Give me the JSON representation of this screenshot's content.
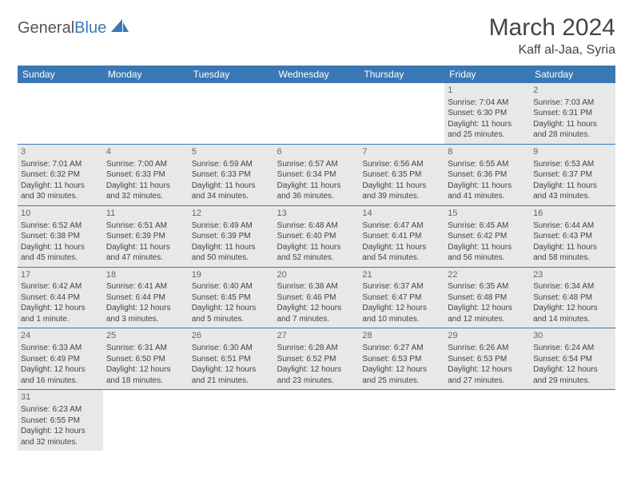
{
  "logo": {
    "text1": "General",
    "text2": "Blue"
  },
  "header": {
    "title": "March 2024",
    "location": "Kaff al-Jaa, Syria"
  },
  "calendar": {
    "weekday_bg": "#3a78b5",
    "weekday_fg": "#ffffff",
    "cell_alt_bg": "#e8e8e8",
    "border_color": "#3a78b5",
    "weekdays": [
      "Sunday",
      "Monday",
      "Tuesday",
      "Wednesday",
      "Thursday",
      "Friday",
      "Saturday"
    ],
    "weeks": [
      [
        null,
        null,
        null,
        null,
        null,
        {
          "n": "1",
          "sr": "Sunrise: 7:04 AM",
          "ss": "Sunset: 6:30 PM",
          "dl": "Daylight: 11 hours and 25 minutes."
        },
        {
          "n": "2",
          "sr": "Sunrise: 7:03 AM",
          "ss": "Sunset: 6:31 PM",
          "dl": "Daylight: 11 hours and 28 minutes."
        }
      ],
      [
        {
          "n": "3",
          "sr": "Sunrise: 7:01 AM",
          "ss": "Sunset: 6:32 PM",
          "dl": "Daylight: 11 hours and 30 minutes."
        },
        {
          "n": "4",
          "sr": "Sunrise: 7:00 AM",
          "ss": "Sunset: 6:33 PM",
          "dl": "Daylight: 11 hours and 32 minutes."
        },
        {
          "n": "5",
          "sr": "Sunrise: 6:59 AM",
          "ss": "Sunset: 6:33 PM",
          "dl": "Daylight: 11 hours and 34 minutes."
        },
        {
          "n": "6",
          "sr": "Sunrise: 6:57 AM",
          "ss": "Sunset: 6:34 PM",
          "dl": "Daylight: 11 hours and 36 minutes."
        },
        {
          "n": "7",
          "sr": "Sunrise: 6:56 AM",
          "ss": "Sunset: 6:35 PM",
          "dl": "Daylight: 11 hours and 39 minutes."
        },
        {
          "n": "8",
          "sr": "Sunrise: 6:55 AM",
          "ss": "Sunset: 6:36 PM",
          "dl": "Daylight: 11 hours and 41 minutes."
        },
        {
          "n": "9",
          "sr": "Sunrise: 6:53 AM",
          "ss": "Sunset: 6:37 PM",
          "dl": "Daylight: 11 hours and 43 minutes."
        }
      ],
      [
        {
          "n": "10",
          "sr": "Sunrise: 6:52 AM",
          "ss": "Sunset: 6:38 PM",
          "dl": "Daylight: 11 hours and 45 minutes."
        },
        {
          "n": "11",
          "sr": "Sunrise: 6:51 AM",
          "ss": "Sunset: 6:39 PM",
          "dl": "Daylight: 11 hours and 47 minutes."
        },
        {
          "n": "12",
          "sr": "Sunrise: 6:49 AM",
          "ss": "Sunset: 6:39 PM",
          "dl": "Daylight: 11 hours and 50 minutes."
        },
        {
          "n": "13",
          "sr": "Sunrise: 6:48 AM",
          "ss": "Sunset: 6:40 PM",
          "dl": "Daylight: 11 hours and 52 minutes."
        },
        {
          "n": "14",
          "sr": "Sunrise: 6:47 AM",
          "ss": "Sunset: 6:41 PM",
          "dl": "Daylight: 11 hours and 54 minutes."
        },
        {
          "n": "15",
          "sr": "Sunrise: 6:45 AM",
          "ss": "Sunset: 6:42 PM",
          "dl": "Daylight: 11 hours and 56 minutes."
        },
        {
          "n": "16",
          "sr": "Sunrise: 6:44 AM",
          "ss": "Sunset: 6:43 PM",
          "dl": "Daylight: 11 hours and 58 minutes."
        }
      ],
      [
        {
          "n": "17",
          "sr": "Sunrise: 6:42 AM",
          "ss": "Sunset: 6:44 PM",
          "dl": "Daylight: 12 hours and 1 minute."
        },
        {
          "n": "18",
          "sr": "Sunrise: 6:41 AM",
          "ss": "Sunset: 6:44 PM",
          "dl": "Daylight: 12 hours and 3 minutes."
        },
        {
          "n": "19",
          "sr": "Sunrise: 6:40 AM",
          "ss": "Sunset: 6:45 PM",
          "dl": "Daylight: 12 hours and 5 minutes."
        },
        {
          "n": "20",
          "sr": "Sunrise: 6:38 AM",
          "ss": "Sunset: 6:46 PM",
          "dl": "Daylight: 12 hours and 7 minutes."
        },
        {
          "n": "21",
          "sr": "Sunrise: 6:37 AM",
          "ss": "Sunset: 6:47 PM",
          "dl": "Daylight: 12 hours and 10 minutes."
        },
        {
          "n": "22",
          "sr": "Sunrise: 6:35 AM",
          "ss": "Sunset: 6:48 PM",
          "dl": "Daylight: 12 hours and 12 minutes."
        },
        {
          "n": "23",
          "sr": "Sunrise: 6:34 AM",
          "ss": "Sunset: 6:48 PM",
          "dl": "Daylight: 12 hours and 14 minutes."
        }
      ],
      [
        {
          "n": "24",
          "sr": "Sunrise: 6:33 AM",
          "ss": "Sunset: 6:49 PM",
          "dl": "Daylight: 12 hours and 16 minutes."
        },
        {
          "n": "25",
          "sr": "Sunrise: 6:31 AM",
          "ss": "Sunset: 6:50 PM",
          "dl": "Daylight: 12 hours and 18 minutes."
        },
        {
          "n": "26",
          "sr": "Sunrise: 6:30 AM",
          "ss": "Sunset: 6:51 PM",
          "dl": "Daylight: 12 hours and 21 minutes."
        },
        {
          "n": "27",
          "sr": "Sunrise: 6:28 AM",
          "ss": "Sunset: 6:52 PM",
          "dl": "Daylight: 12 hours and 23 minutes."
        },
        {
          "n": "28",
          "sr": "Sunrise: 6:27 AM",
          "ss": "Sunset: 6:53 PM",
          "dl": "Daylight: 12 hours and 25 minutes."
        },
        {
          "n": "29",
          "sr": "Sunrise: 6:26 AM",
          "ss": "Sunset: 6:53 PM",
          "dl": "Daylight: 12 hours and 27 minutes."
        },
        {
          "n": "30",
          "sr": "Sunrise: 6:24 AM",
          "ss": "Sunset: 6:54 PM",
          "dl": "Daylight: 12 hours and 29 minutes."
        }
      ],
      [
        {
          "n": "31",
          "sr": "Sunrise: 6:23 AM",
          "ss": "Sunset: 6:55 PM",
          "dl": "Daylight: 12 hours and 32 minutes."
        },
        null,
        null,
        null,
        null,
        null,
        null
      ]
    ]
  }
}
